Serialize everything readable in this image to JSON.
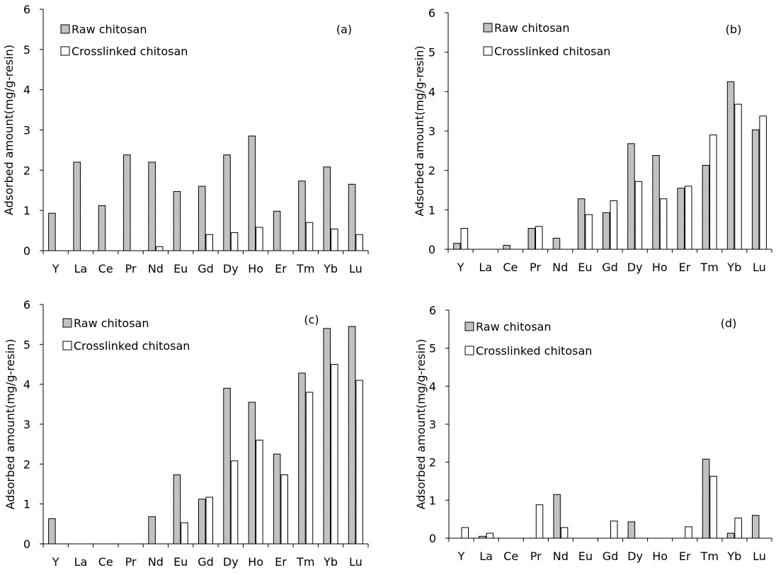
{
  "chart_data": [
    {
      "type": "bar",
      "tag": "(a)",
      "ylabel": "Adsorbed amount(mg/g-resin)",
      "ylim": [
        0,
        6
      ],
      "yticks": [
        "0",
        "1",
        "2",
        "3",
        "4",
        "5",
        "6"
      ],
      "categories": [
        "Y",
        "La",
        "Ce",
        "Pr",
        "Nd",
        "Eu",
        "Gd",
        "Dy",
        "Ho",
        "Er",
        "Tm",
        "Yb",
        "Lu"
      ],
      "legend_position": "top-left",
      "series": [
        {
          "name": "Raw chitosan",
          "values": [
            0.93,
            2.2,
            1.12,
            2.38,
            2.2,
            1.47,
            1.6,
            2.38,
            2.85,
            0.98,
            1.73,
            2.08,
            1.65
          ]
        },
        {
          "name": "Crosslinked chitosan",
          "values": [
            0,
            0,
            0,
            0,
            0.1,
            0,
            0.4,
            0.45,
            0.58,
            0,
            0.7,
            0.54,
            0.4
          ]
        }
      ]
    },
    {
      "type": "bar",
      "tag": "(b)",
      "ylabel": "Adsorbed amount(mg/g-resin)",
      "ylim": [
        0,
        6
      ],
      "yticks": [
        "0",
        "1",
        "2",
        "3",
        "4",
        "5",
        "6"
      ],
      "categories": [
        "Y",
        "La",
        "Ce",
        "Pr",
        "Nd",
        "Eu",
        "Gd",
        "Dy",
        "Ho",
        "Er",
        "Tm",
        "Yb",
        "Lu"
      ],
      "legend_position": "top-left",
      "series": [
        {
          "name": "Raw chitosan",
          "values": [
            0.15,
            0,
            0.1,
            0.53,
            0.28,
            1.28,
            0.93,
            2.68,
            2.38,
            1.55,
            2.13,
            4.25,
            3.03
          ]
        },
        {
          "name": "Crosslinked chitosan",
          "values": [
            0.53,
            0,
            0,
            0.58,
            0,
            0.88,
            1.23,
            1.72,
            1.28,
            1.6,
            2.9,
            3.68,
            3.38
          ]
        }
      ]
    },
    {
      "type": "bar",
      "tag": "(c)",
      "ylabel": "Adsorbed amount(mg/g-resin)",
      "ylim": [
        0,
        6
      ],
      "yticks": [
        "0",
        "1",
        "2",
        "3",
        "4",
        "5",
        "6"
      ],
      "categories": [
        "Y",
        "La",
        "Ce",
        "Pr",
        "Nd",
        "Eu",
        "Gd",
        "Dy",
        "Ho",
        "Er",
        "Tm",
        "Yb",
        "Lu"
      ],
      "legend_position": "top-left",
      "series": [
        {
          "name": "Raw chitosan",
          "values": [
            0.63,
            0,
            0,
            0,
            0.68,
            1.73,
            1.12,
            3.9,
            3.55,
            2.25,
            4.28,
            5.4,
            5.45
          ]
        },
        {
          "name": "Crosslinked chitosan",
          "values": [
            0,
            0,
            0,
            0,
            0,
            0.53,
            1.17,
            2.08,
            2.6,
            1.73,
            3.8,
            4.5,
            4.1
          ]
        }
      ]
    },
    {
      "type": "bar",
      "tag": "(d)",
      "ylabel": "Adsorbed amount(mg/g-resin)",
      "ylim": [
        0,
        6
      ],
      "yticks": [
        "0",
        "1",
        "2",
        "3",
        "4",
        "5",
        "6"
      ],
      "categories": [
        "Y",
        "La",
        "Ce",
        "Pr",
        "Nd",
        "Eu",
        "Gd",
        "Dy",
        "Ho",
        "Er",
        "Tm",
        "Yb",
        "Lu"
      ],
      "legend_position": "top-left",
      "series": [
        {
          "name": "Raw chitosan",
          "values": [
            0,
            0.05,
            0,
            0,
            1.15,
            0,
            0,
            0.43,
            0,
            0,
            2.08,
            0.13,
            0.6
          ]
        },
        {
          "name": "Crosslinked chitosan",
          "values": [
            0.28,
            0.13,
            0,
            0.88,
            0.28,
            0,
            0.45,
            0,
            0,
            0.3,
            1.63,
            0.53,
            0
          ]
        }
      ]
    }
  ]
}
